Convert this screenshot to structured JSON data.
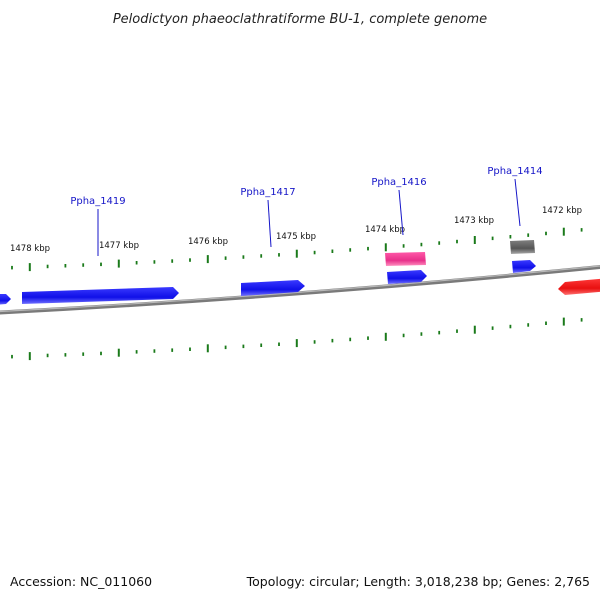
{
  "title": "Pelodictyon phaeoclathratiforme BU-1, complete genome",
  "footer": {
    "accession": "Accession: NC_011060",
    "summary": "Topology: circular; Length: 3,018,238 bp; Genes: 2,765"
  },
  "scale_labels": [
    "1478 kbp",
    "1477 kbp",
    "1476 kbp",
    "1475 kbp",
    "1474 kbp",
    "1473 kbp",
    "1472 kbp"
  ],
  "gene_labels": [
    "Ppha_1419",
    "Ppha_1417",
    "Ppha_1416",
    "Ppha_1414"
  ],
  "colors": {
    "forward_gene": "#1010e8",
    "pink_gene": "#e8308a",
    "gray_gene": "#606060",
    "reverse_gene": "#e81010",
    "backbone": "#808080",
    "tick": "#1a7a1a",
    "label_line": "#1515c8"
  }
}
